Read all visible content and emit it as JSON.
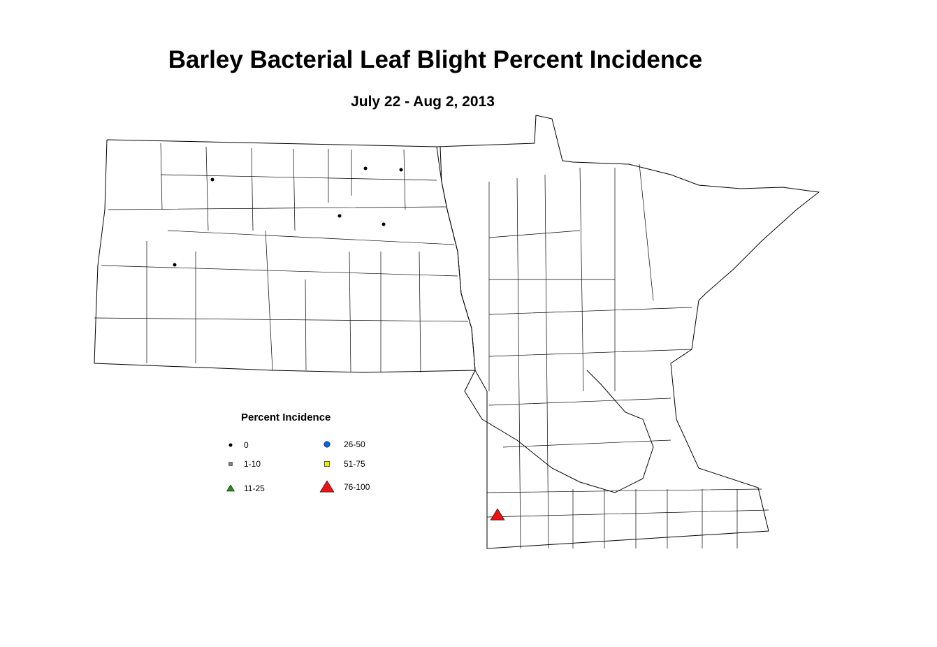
{
  "title": "Barley Bacterial Leaf Blight Percent Incidence",
  "subtitle": "July 22 - Aug 2, 2013",
  "legend": {
    "title": "Percent Incidence",
    "items": [
      {
        "label": "0",
        "shape": "dot",
        "color": "#000000"
      },
      {
        "label": "1-10",
        "shape": "square",
        "color": "#808080"
      },
      {
        "label": "11-25",
        "shape": "triangle",
        "color": "#2e8b1e"
      },
      {
        "label": "26-50",
        "shape": "circle",
        "color": "#0066ee"
      },
      {
        "label": "51-75",
        "shape": "square",
        "color": "#eeee00"
      },
      {
        "label": "76-100",
        "shape": "triangle",
        "color": "#ee1111"
      }
    ]
  }
}
